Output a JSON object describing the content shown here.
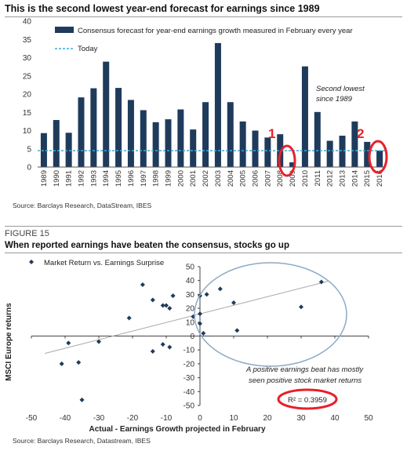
{
  "top": {
    "title": "This is the second lowest year-end forecast for earnings since 1989",
    "source": "Source: Barclays Research, DataStream, IBES"
  },
  "bottom": {
    "figure_label": "FIGURE 15",
    "title": "When reported earnings have beaten the consensus, stocks go up",
    "source": "Source: Barclays Research, Datastream, IBES"
  },
  "annotations": {
    "marker_one": "1",
    "marker_two": "2",
    "second_lowest": [
      "Second lowest",
      "since 1989"
    ],
    "positive_note": [
      "A positive earnings beat has mostly",
      "seen positive  stock market returns"
    ],
    "r_squared": "R² = 0.3959"
  },
  "colors": {
    "bar": "#1f3b5c",
    "today_line": "#3fa9d8",
    "point": "#1f3b5c",
    "trendline": "#a8a8a8",
    "ellipse": "#8eaac4",
    "highlight": "#e8202a"
  },
  "chart_data": [
    {
      "type": "bar",
      "title": "This is the second lowest year-end forecast for earnings since 1989",
      "categories": [
        "1989",
        "1990",
        "1991",
        "1992",
        "1993",
        "1994",
        "1995",
        "1996",
        "1997",
        "1998",
        "1999",
        "2000",
        "2001",
        "2002",
        "2003",
        "2004",
        "2005",
        "2006",
        "2007",
        "2008",
        "2009",
        "2010",
        "2011",
        "2012",
        "2013",
        "2014",
        "2015",
        "2016"
      ],
      "series": [
        {
          "name": "Consensus forecast for year-end earnings growth measured in February every year",
          "values": [
            9.3,
            12.9,
            9.4,
            19.1,
            21.6,
            28.9,
            21.7,
            18.4,
            15.6,
            12.3,
            13.1,
            15.8,
            10.3,
            17.8,
            34.0,
            17.8,
            12.5,
            10.0,
            8.1,
            9.0,
            1.3,
            27.6,
            15.1,
            7.2,
            8.6,
            12.5,
            6.9,
            4.5
          ]
        }
      ],
      "reference_line": {
        "name": "Today",
        "value": 4.5
      },
      "ylim": [
        0,
        40
      ],
      "yticks": [
        0,
        5,
        10,
        15,
        20,
        25,
        30,
        35,
        40
      ],
      "legend": "top-left",
      "grid": false
    },
    {
      "type": "scatter",
      "title": "When reported earnings have beaten the consensus, stocks go up",
      "xlabel": "Actual - Earnings Growth projected in February",
      "ylabel": "MSCI Europe returns",
      "xlim": [
        -50,
        50
      ],
      "ylim": [
        -50,
        50
      ],
      "xticks": [
        -50,
        -40,
        -30,
        -20,
        -10,
        0,
        10,
        20,
        30,
        40,
        50
      ],
      "yticks": [
        -50,
        -40,
        -30,
        -20,
        -10,
        0,
        10,
        20,
        30,
        40,
        50
      ],
      "legend": "top-left",
      "grid": false,
      "series": [
        {
          "name": "Market Return vs. Earnings Surprise",
          "points": [
            [
              -41,
              -20
            ],
            [
              -39,
              -5
            ],
            [
              -36,
              -19
            ],
            [
              -35,
              -46
            ],
            [
              -30,
              -4
            ],
            [
              -21,
              13
            ],
            [
              -17,
              37
            ],
            [
              -14,
              26
            ],
            [
              -14,
              -11
            ],
            [
              -11,
              -6
            ],
            [
              -11,
              22
            ],
            [
              -10,
              22
            ],
            [
              -9,
              -8
            ],
            [
              -9,
              20
            ],
            [
              -8,
              29
            ],
            [
              -2,
              14
            ],
            [
              0,
              16
            ],
            [
              0,
              29
            ],
            [
              0,
              9
            ],
            [
              1,
              2
            ],
            [
              2,
              30
            ],
            [
              6,
              34
            ],
            [
              10,
              24
            ],
            [
              11,
              4
            ],
            [
              30,
              21
            ],
            [
              36,
              39
            ]
          ]
        }
      ],
      "trendline": {
        "x": [
          -46,
          38
        ],
        "y": [
          -12.5,
          39.5
        ]
      }
    }
  ]
}
